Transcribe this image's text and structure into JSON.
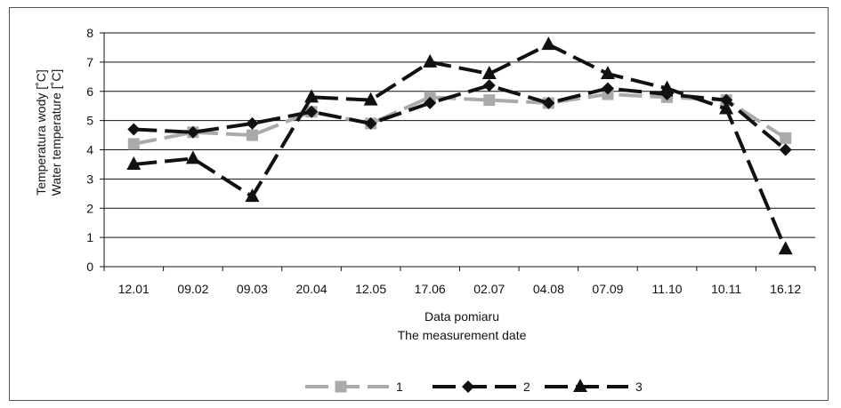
{
  "chart_data": {
    "type": "line",
    "categories": [
      "12.01",
      "09.02",
      "09.03",
      "20.04",
      "12.05",
      "17.06",
      "02.07",
      "04.08",
      "07.09",
      "11.10",
      "10.11",
      "16.12"
    ],
    "series": [
      {
        "name": "1",
        "color": "#aaaaaa",
        "marker": "square",
        "dash": true,
        "values": [
          4.2,
          4.6,
          4.5,
          5.3,
          4.9,
          5.8,
          5.7,
          5.6,
          5.9,
          5.8,
          5.7,
          4.4
        ]
      },
      {
        "name": "2",
        "color": "#111111",
        "marker": "diamond",
        "dash": true,
        "values": [
          4.7,
          4.6,
          4.9,
          5.3,
          4.9,
          5.6,
          6.2,
          5.6,
          6.1,
          5.9,
          5.7,
          4.0
        ]
      },
      {
        "name": "3",
        "color": "#111111",
        "marker": "triangle",
        "dash": true,
        "values": [
          3.5,
          3.7,
          2.4,
          5.8,
          5.7,
          7.0,
          6.6,
          7.6,
          6.6,
          6.1,
          5.4,
          0.6
        ]
      }
    ],
    "xlabel": [
      "Data pomiaru",
      "The measurement date"
    ],
    "ylabel": [
      "Temperatura wody [˚C]",
      "Water temperature [˚C]"
    ],
    "ylim": [
      0,
      8
    ],
    "yticks": [
      "0",
      "1",
      "2",
      "3",
      "4",
      "5",
      "6",
      "7",
      "8"
    ],
    "grid": true,
    "legend": "bottom"
  }
}
